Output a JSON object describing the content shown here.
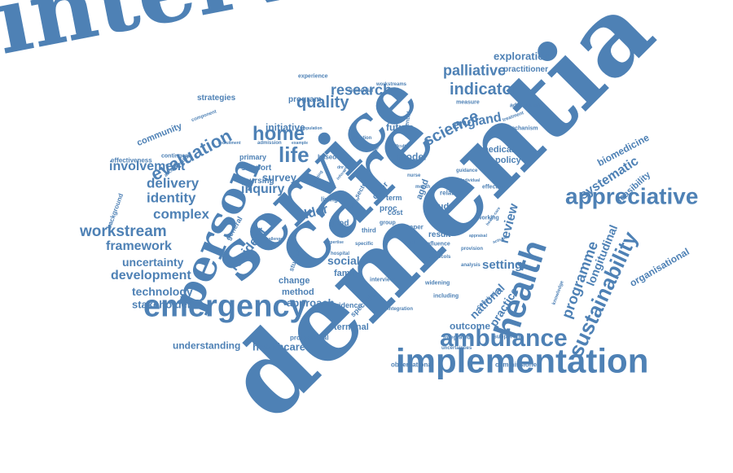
{
  "colors": {
    "word": "#4e81b5",
    "background": "#ffffff"
  },
  "words": [
    {
      "text": "intervention"
    },
    {
      "text": "dementia"
    },
    {
      "text": "care"
    },
    {
      "text": "service"
    },
    {
      "text": "person"
    },
    {
      "text": "implementation"
    },
    {
      "text": "emergency"
    },
    {
      "text": "health"
    },
    {
      "text": "ambulance"
    },
    {
      "text": "appreciative"
    },
    {
      "text": "sustainability"
    },
    {
      "text": "palliative"
    },
    {
      "text": "indicator"
    },
    {
      "text": "science"
    },
    {
      "text": "research"
    },
    {
      "text": "home"
    },
    {
      "text": "life"
    },
    {
      "text": "quality"
    },
    {
      "text": "evaluation"
    },
    {
      "text": "exploration"
    },
    {
      "text": "practitioner"
    },
    {
      "text": "england"
    },
    {
      "text": "involvement"
    },
    {
      "text": "delivery"
    },
    {
      "text": "identity"
    },
    {
      "text": "complex"
    },
    {
      "text": "workstream"
    },
    {
      "text": "framework"
    },
    {
      "text": "uncertainty"
    },
    {
      "text": "development"
    },
    {
      "text": "technology"
    },
    {
      "text": "stakeholder"
    },
    {
      "text": "understanding"
    },
    {
      "text": "healthcare"
    },
    {
      "text": "inquiry"
    },
    {
      "text": "survey"
    },
    {
      "text": "older"
    },
    {
      "text": "resident"
    },
    {
      "text": "social"
    },
    {
      "text": "family"
    },
    {
      "text": "change"
    },
    {
      "text": "method"
    },
    {
      "text": "approach"
    },
    {
      "text": "evidence"
    },
    {
      "text": "terminal"
    },
    {
      "text": "professional"
    },
    {
      "text": "outcome"
    },
    {
      "text": "observational"
    },
    {
      "text": "commissioner"
    },
    {
      "text": "setting"
    },
    {
      "text": "national"
    },
    {
      "text": "practice"
    },
    {
      "text": "review"
    },
    {
      "text": "programme"
    },
    {
      "text": "longitudinal"
    },
    {
      "text": "systematic"
    },
    {
      "text": "biomedicine"
    },
    {
      "text": "feasibility"
    },
    {
      "text": "organisational"
    },
    {
      "text": "medical"
    },
    {
      "text": "policy"
    },
    {
      "text": "effective"
    },
    {
      "text": "result"
    },
    {
      "text": "study"
    },
    {
      "text": "future"
    },
    {
      "text": "model"
    },
    {
      "text": "initiative"
    },
    {
      "text": "program"
    },
    {
      "text": "strategies"
    },
    {
      "text": "community"
    },
    {
      "text": "effectiveness"
    },
    {
      "text": "contingent"
    },
    {
      "text": "primary"
    },
    {
      "text": "support"
    },
    {
      "text": "nursing"
    },
    {
      "text": "based"
    },
    {
      "text": "experience"
    },
    {
      "text": "mechanism"
    },
    {
      "text": "measure"
    },
    {
      "text": "addressing"
    },
    {
      "text": "treatment"
    },
    {
      "text": "general"
    },
    {
      "text": "background"
    },
    {
      "text": "specialist"
    },
    {
      "text": "integrated"
    },
    {
      "text": "supporting"
    },
    {
      "text": "knowledge"
    },
    {
      "text": "working"
    },
    {
      "text": "living"
    },
    {
      "text": "good"
    },
    {
      "text": "term"
    },
    {
      "text": "cost"
    },
    {
      "text": "aged"
    },
    {
      "text": "carer"
    },
    {
      "text": "component"
    },
    {
      "text": "residential"
    },
    {
      "text": "workstreams"
    },
    {
      "text": "accommodate"
    },
    {
      "text": "recruitment"
    },
    {
      "text": "admission"
    },
    {
      "text": "population"
    },
    {
      "text": "studies"
    },
    {
      "text": "challenge"
    },
    {
      "text": "including"
    },
    {
      "text": "widening"
    },
    {
      "text": "influence"
    },
    {
      "text": "integration"
    },
    {
      "text": "uncertainties"
    },
    {
      "text": "interview"
    },
    {
      "text": "third"
    },
    {
      "text": "paper"
    },
    {
      "text": "relative"
    },
    {
      "text": "month"
    },
    {
      "text": "guidance"
    },
    {
      "text": "hospital"
    },
    {
      "text": "specific"
    },
    {
      "text": "example"
    },
    {
      "text": "potential"
    },
    {
      "text": "conclusion"
    },
    {
      "text": "analysis"
    },
    {
      "text": "provision"
    },
    {
      "text": "protocols"
    },
    {
      "text": "sector"
    },
    {
      "text": "proc"
    },
    {
      "text": "group"
    },
    {
      "text": "valuation"
    },
    {
      "text": "activities"
    },
    {
      "text": "nurse"
    },
    {
      "text": "individual"
    },
    {
      "text": "unique"
    },
    {
      "text": "related"
    },
    {
      "text": "health-care"
    },
    {
      "text": "reporting"
    },
    {
      "text": "dnr"
    },
    {
      "text": "data"
    },
    {
      "text": "difficult"
    },
    {
      "text": "evaluate"
    },
    {
      "text": "appraisal"
    },
    {
      "text": "expertise"
    },
    {
      "text": "inform"
    }
  ]
}
